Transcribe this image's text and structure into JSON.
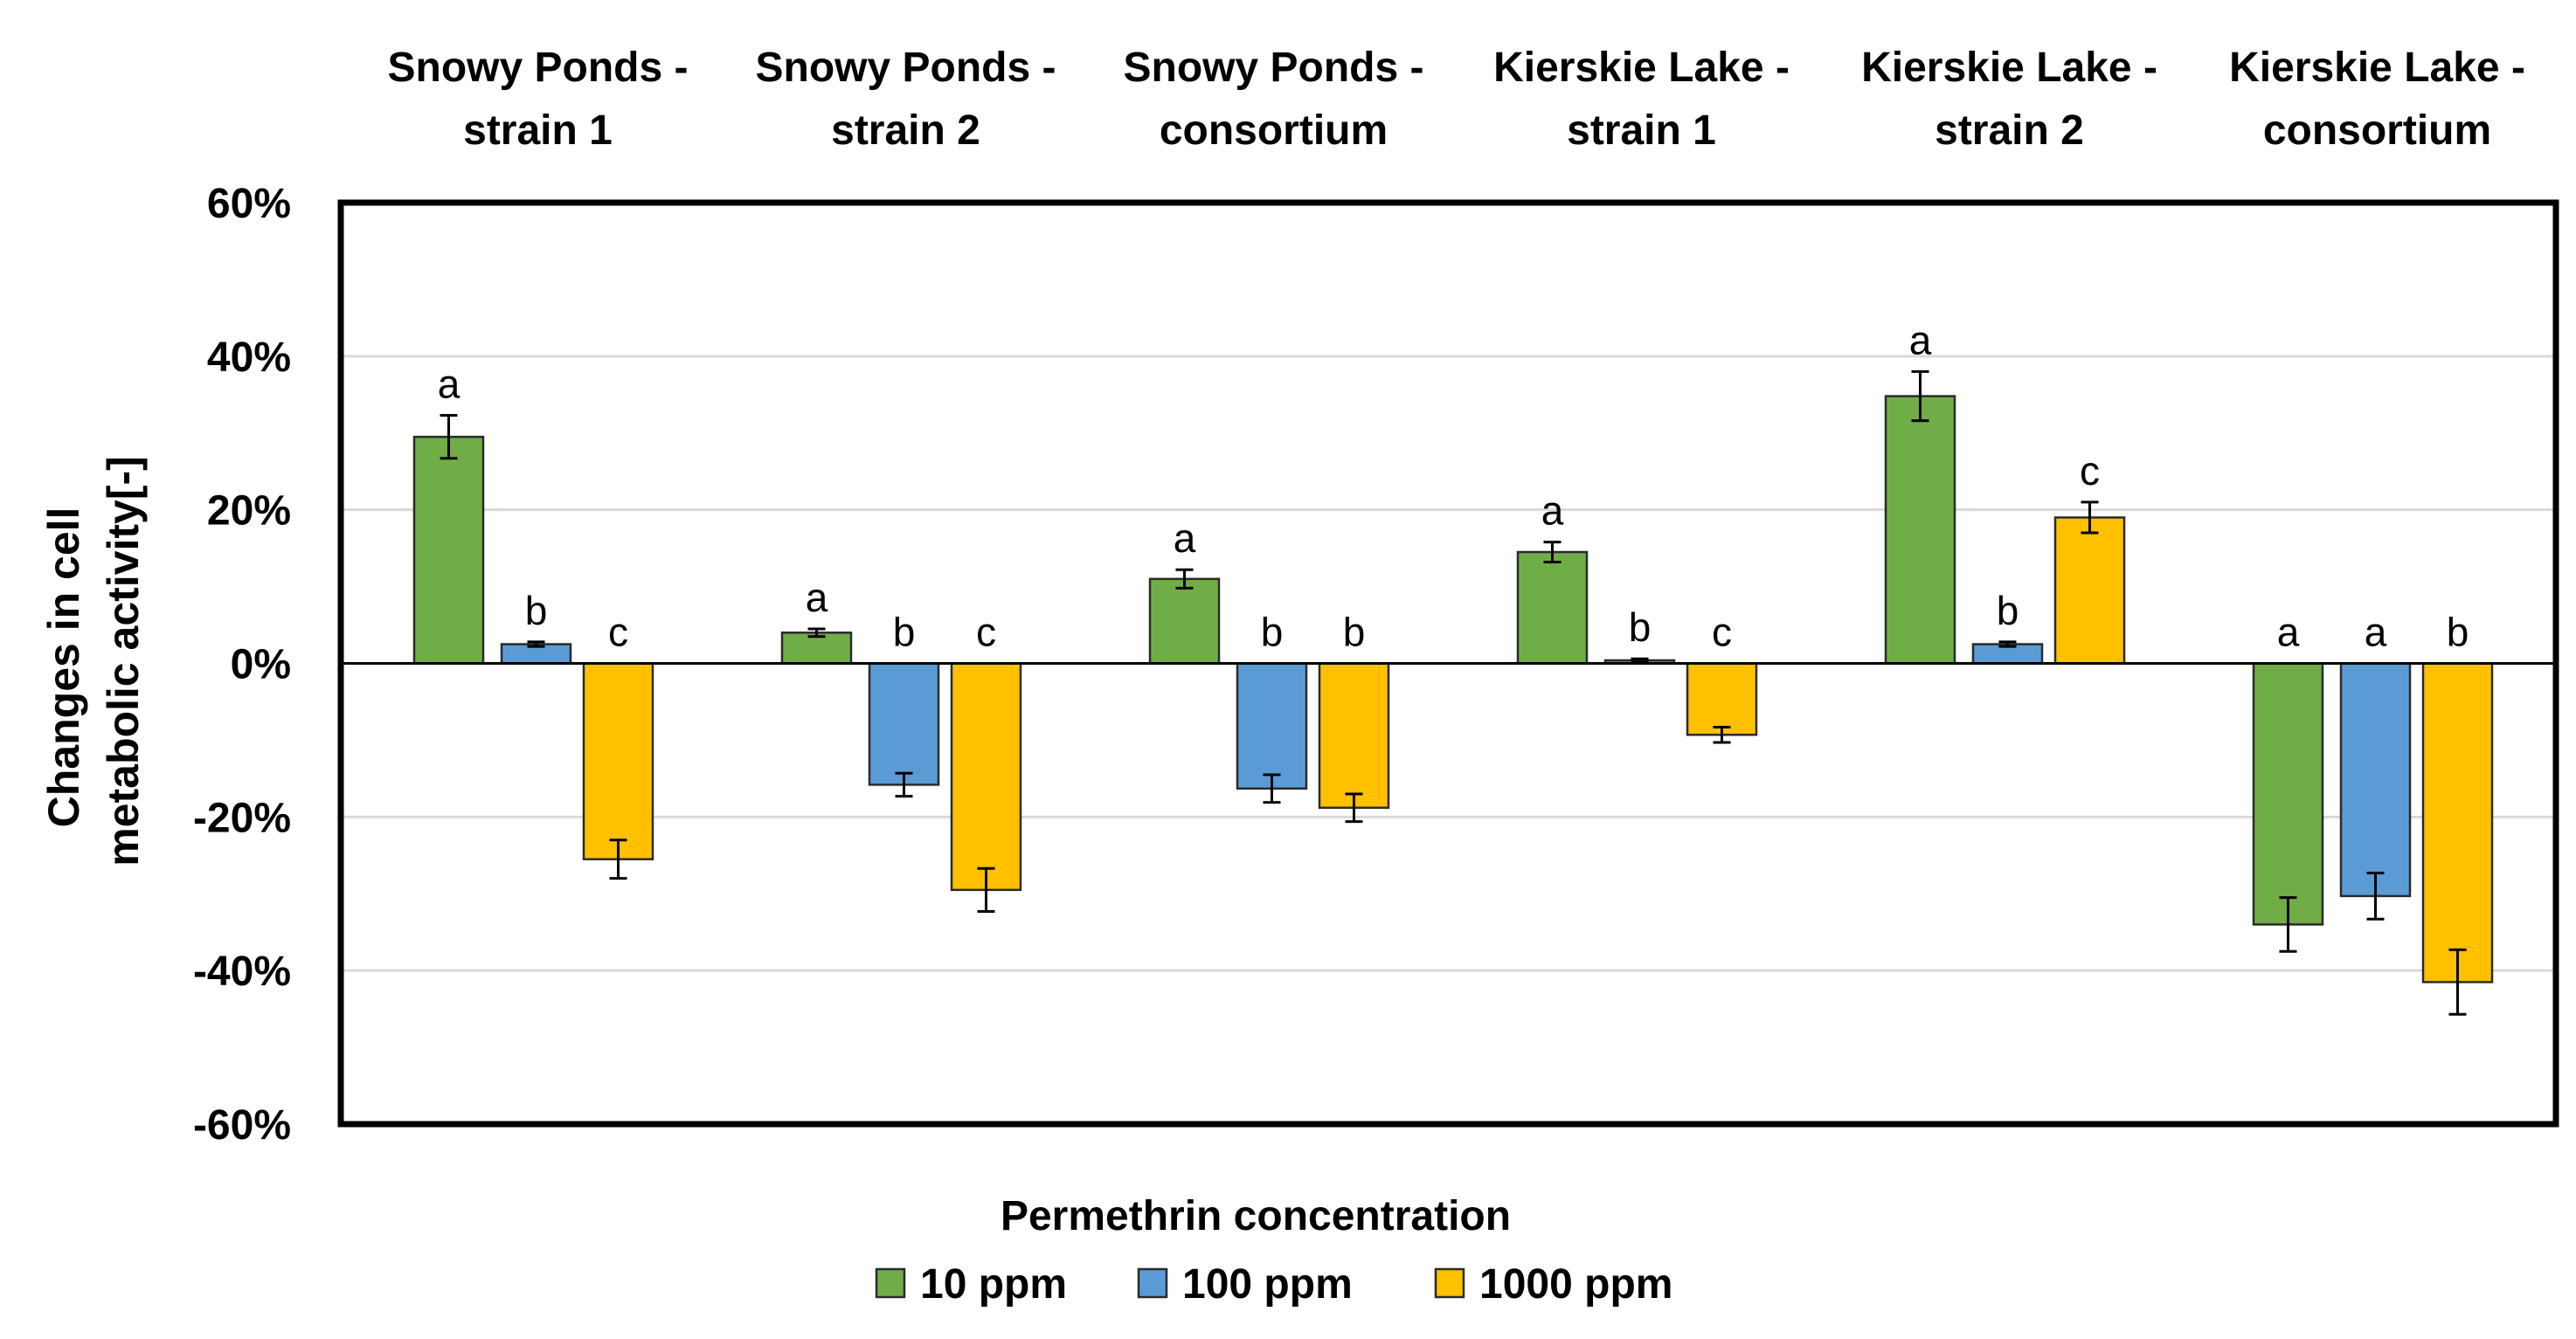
{
  "chart_data": {
    "type": "bar",
    "categories": [
      [
        "Snowy Ponds -",
        "strain 1"
      ],
      [
        "Snowy Ponds -",
        "strain 2"
      ],
      [
        "Snowy Ponds -",
        "consortium"
      ],
      [
        "Kierskie Lake -",
        "strain 1"
      ],
      [
        "Kierskie Lake -",
        "strain 2"
      ],
      [
        "Kierskie Lake -",
        "consortium"
      ]
    ],
    "series": [
      {
        "name": "10 ppm",
        "color": "#70AD47",
        "values": [
          29.5,
          4.0,
          11.0,
          14.5,
          34.8,
          -34.0
        ],
        "errors": [
          2.8,
          0.5,
          1.2,
          1.3,
          3.2,
          3.5
        ],
        "letters": [
          "a",
          "a",
          "a",
          "a",
          "a",
          "a"
        ]
      },
      {
        "name": "100 ppm",
        "color": "#5B9BD5",
        "values": [
          2.5,
          -15.8,
          -16.3,
          0.4,
          2.5,
          -30.3
        ],
        "errors": [
          0.3,
          1.5,
          1.8,
          0.2,
          0.3,
          3.0
        ],
        "letters": [
          "b",
          "b",
          "b",
          "b",
          "b",
          "a"
        ]
      },
      {
        "name": "1000 ppm",
        "color": "#FFC000",
        "values": [
          -25.5,
          -29.5,
          -18.8,
          -9.3,
          19.0,
          -41.5
        ],
        "errors": [
          2.5,
          2.8,
          1.8,
          1.0,
          2.0,
          4.2
        ],
        "letters": [
          "c",
          "c",
          "b",
          "c",
          "c",
          "b"
        ]
      }
    ],
    "ylabel": [
      "Changes in cell",
      "metabolic activity[-]"
    ],
    "xlabel": "Permethrin concentration",
    "ylim": [
      -60,
      60
    ],
    "yticks": [
      "-60%",
      "-40%",
      "-20%",
      "0%",
      "20%",
      "40%",
      "60%"
    ],
    "grid": true,
    "legend_position": "bottom-center",
    "axis_color": "#000000",
    "grid_color": "#D9D9D9"
  }
}
